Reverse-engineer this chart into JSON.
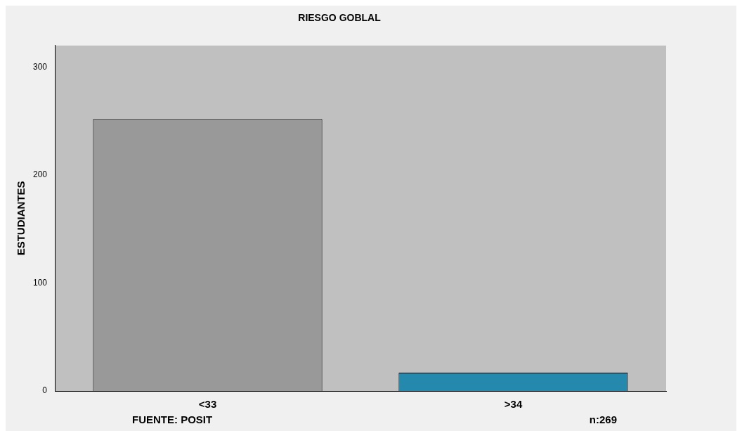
{
  "chart_data": {
    "type": "bar",
    "title": "RIESGO GOBLAL",
    "ylabel": "ESTUDIANTES",
    "categories": [
      "<33",
      ">34"
    ],
    "values": [
      252,
      17
    ],
    "colors": [
      "#999999",
      "#2489ad"
    ],
    "ylim": [
      0,
      320
    ],
    "yticks": [
      0,
      100,
      200,
      300
    ],
    "grid": false,
    "legend": false,
    "annotations": [
      "FUENTE: POSIT",
      "n:269"
    ]
  }
}
